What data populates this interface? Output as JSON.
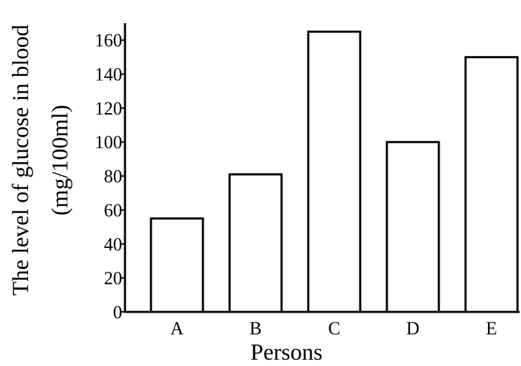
{
  "chart_data": {
    "type": "bar",
    "title": "",
    "categories": [
      "A",
      "B",
      "C",
      "D",
      "E"
    ],
    "values": [
      55,
      81,
      165,
      100,
      150
    ],
    "xlabel": "Persons",
    "ylabel_lines": [
      "The level of glucose in blood",
      "(mg/100ml)"
    ],
    "ylim": [
      0,
      170
    ],
    "yticks": [
      0,
      20,
      40,
      60,
      80,
      100,
      120,
      140,
      160
    ],
    "grid": false,
    "legend": "none",
    "colors": {
      "bar_fill": "#ffffff",
      "bar_stroke": "#000000",
      "axis": "#000000"
    }
  }
}
